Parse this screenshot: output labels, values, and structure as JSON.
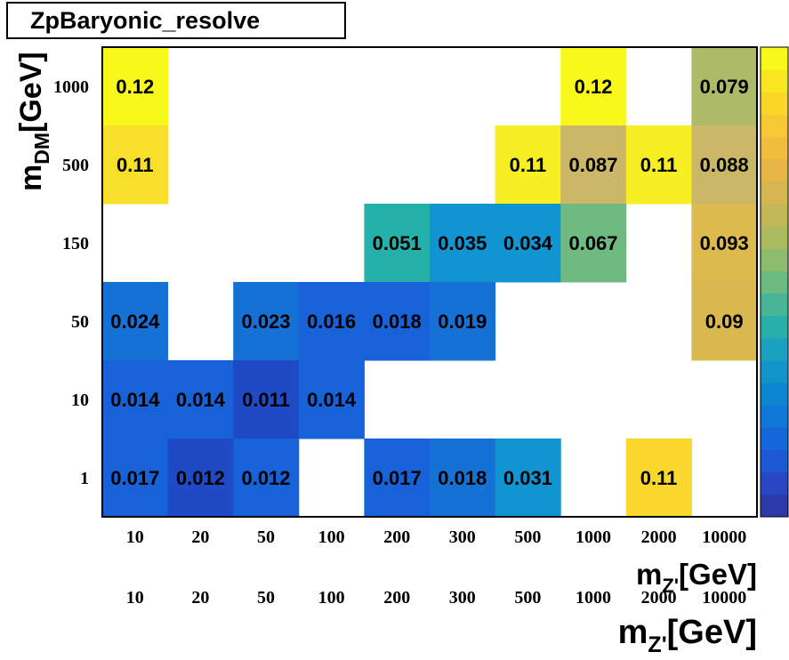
{
  "title": "ZpBaryonic_resolve",
  "chart_data": {
    "type": "heatmap",
    "title": "ZpBaryonic_resolve",
    "xlabel_main": "m",
    "xlabel_sub": "Z'",
    "xlabel_unit": "[GeV]",
    "ylabel_main": "m",
    "ylabel_sub": "DM",
    "ylabel_unit": "[GeV]",
    "x_categories": [
      "10",
      "20",
      "50",
      "100",
      "200",
      "300",
      "500",
      "1000",
      "2000",
      "10000"
    ],
    "y_categories": [
      "1",
      "10",
      "50",
      "150",
      "500",
      "1000"
    ],
    "zlim": [
      0.0,
      0.12
    ],
    "colormap": [
      "#2b3aa8",
      "#2748c2",
      "#1e59d4",
      "#1467d9",
      "#0f77d7",
      "#0d86d2",
      "#1294c8",
      "#1aa1bd",
      "#2aaeac",
      "#48b596",
      "#6bba80",
      "#8dbc6d",
      "#abbb60",
      "#c3b857",
      "#d6b650",
      "#e6b747",
      "#f1bd3c",
      "#f7c932",
      "#f9d728",
      "#f8e720",
      "#f8f91b"
    ],
    "cells": [
      {
        "x": "10",
        "y": "1000",
        "value": 0.12,
        "label": "0.12",
        "color": "#f8f91b"
      },
      {
        "x": "1000",
        "y": "1000",
        "value": 0.12,
        "label": "0.12",
        "color": "#f8f91b"
      },
      {
        "x": "10000",
        "y": "1000",
        "value": 0.079,
        "label": "0.079",
        "color": "#adbb69"
      },
      {
        "x": "10",
        "y": "500",
        "value": 0.11,
        "label": "0.11",
        "color": "#f8df2c"
      },
      {
        "x": "500",
        "y": "500",
        "value": 0.11,
        "label": "0.11",
        "color": "#f8ee24"
      },
      {
        "x": "1000",
        "y": "500",
        "value": 0.087,
        "label": "0.087",
        "color": "#ccb667"
      },
      {
        "x": "2000",
        "y": "500",
        "value": 0.11,
        "label": "0.11",
        "color": "#f8ee24"
      },
      {
        "x": "10000",
        "y": "500",
        "value": 0.088,
        "label": "0.088",
        "color": "#cbb867"
      },
      {
        "x": "200",
        "y": "150",
        "value": 0.051,
        "label": "0.051",
        "color": "#26b0aa"
      },
      {
        "x": "300",
        "y": "150",
        "value": 0.035,
        "label": "0.035",
        "color": "#1195d2"
      },
      {
        "x": "500",
        "y": "150",
        "value": 0.034,
        "label": "0.034",
        "color": "#1195d2"
      },
      {
        "x": "1000",
        "y": "150",
        "value": 0.067,
        "label": "0.067",
        "color": "#6fba80"
      },
      {
        "x": "10000",
        "y": "150",
        "value": 0.093,
        "label": "0.093",
        "color": "#ddba4d"
      },
      {
        "x": "10",
        "y": "50",
        "value": 0.024,
        "label": "0.024",
        "color": "#1671d6"
      },
      {
        "x": "50",
        "y": "50",
        "value": 0.023,
        "label": "0.023",
        "color": "#1671d6"
      },
      {
        "x": "100",
        "y": "50",
        "value": 0.016,
        "label": "0.016",
        "color": "#1761d9"
      },
      {
        "x": "200",
        "y": "50",
        "value": 0.018,
        "label": "0.018",
        "color": "#1761d9"
      },
      {
        "x": "300",
        "y": "50",
        "value": 0.019,
        "label": "0.019",
        "color": "#1671d6"
      },
      {
        "x": "10000",
        "y": "50",
        "value": 0.09,
        "label": "0.09",
        "color": "#dab850"
      },
      {
        "x": "10",
        "y": "10",
        "value": 0.014,
        "label": "0.014",
        "color": "#1761d9"
      },
      {
        "x": "20",
        "y": "10",
        "value": 0.014,
        "label": "0.014",
        "color": "#1761d9"
      },
      {
        "x": "50",
        "y": "10",
        "value": 0.011,
        "label": "0.011",
        "color": "#1f4ac6"
      },
      {
        "x": "100",
        "y": "10",
        "value": 0.014,
        "label": "0.014",
        "color": "#1761d9"
      },
      {
        "x": "10",
        "y": "1",
        "value": 0.017,
        "label": "0.017",
        "color": "#1761d9"
      },
      {
        "x": "20",
        "y": "1",
        "value": 0.012,
        "label": "0.012",
        "color": "#1f4ac6"
      },
      {
        "x": "50",
        "y": "1",
        "value": 0.012,
        "label": "0.012",
        "color": "#1761d9"
      },
      {
        "x": "200",
        "y": "1",
        "value": 0.017,
        "label": "0.017",
        "color": "#1761d9"
      },
      {
        "x": "300",
        "y": "1",
        "value": 0.018,
        "label": "0.018",
        "color": "#1671d6"
      },
      {
        "x": "500",
        "y": "1",
        "value": 0.031,
        "label": "0.031",
        "color": "#1195d2"
      },
      {
        "x": "2000",
        "y": "1",
        "value": 0.11,
        "label": "0.11",
        "color": "#fad72c"
      }
    ]
  }
}
